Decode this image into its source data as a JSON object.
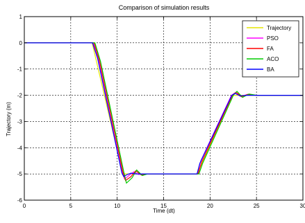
{
  "chart_data": {
    "type": "line",
    "title": "Comparison of simulation results",
    "xlabel": "Time (dt)",
    "ylabel": "Trajectory  (m)",
    "xlim": [
      0,
      30
    ],
    "ylim": [
      -6,
      1
    ],
    "x_ticks": [
      0,
      5,
      10,
      15,
      20,
      25,
      30
    ],
    "x_tick_labels": [
      "0",
      "5",
      "10",
      "15",
      "20",
      "25",
      "30"
    ],
    "y_ticks": [
      1,
      0,
      -1,
      -2,
      -3,
      -4,
      -5,
      -6
    ],
    "y_tick_labels": [
      "1",
      "0",
      "-1",
      "-2",
      "-3",
      "-4",
      "-5",
      "-6"
    ],
    "grid": true,
    "legend_position": "top-right",
    "series": [
      {
        "name": "Trajectory",
        "color": "#e6e600",
        "x": [
          0,
          7.3,
          10.6,
          18.6,
          22.5,
          30
        ],
        "y": [
          0,
          0,
          -5,
          -5,
          -2,
          -2
        ]
      },
      {
        "name": "PSO",
        "color": "#ff00ff",
        "x": [
          0,
          7.4,
          8.0,
          10.5,
          10.8,
          11.3,
          11.8,
          12.3,
          13.0,
          18.6,
          19.0,
          22.3,
          22.7,
          23.3,
          24.0,
          25.0,
          30
        ],
        "y": [
          0,
          0,
          -0.7,
          -4.9,
          -5.2,
          -5.05,
          -4.92,
          -5.02,
          -5.0,
          -5.0,
          -4.5,
          -2.0,
          -1.9,
          -2.05,
          -1.97,
          -2.0,
          -2.0
        ]
      },
      {
        "name": "FA",
        "color": "#ff0000",
        "x": [
          0,
          7.5,
          8.1,
          10.6,
          10.9,
          11.5,
          12.0,
          12.6,
          13.2,
          18.7,
          19.1,
          22.4,
          22.8,
          23.4,
          24.1,
          25.0,
          30
        ],
        "y": [
          0,
          0,
          -0.7,
          -4.9,
          -5.25,
          -5.1,
          -4.88,
          -5.04,
          -5.0,
          -5.0,
          -4.55,
          -2.0,
          -1.88,
          -2.06,
          -1.96,
          -2.0,
          -2.0
        ]
      },
      {
        "name": "ACO",
        "color": "#00cc00",
        "x": [
          0,
          7.6,
          8.2,
          10.7,
          11.0,
          11.6,
          12.1,
          12.7,
          13.3,
          18.8,
          19.2,
          22.5,
          22.9,
          23.5,
          24.2,
          25.0,
          30
        ],
        "y": [
          0,
          0,
          -0.7,
          -4.9,
          -5.35,
          -5.15,
          -4.85,
          -5.06,
          -5.0,
          -5.0,
          -4.6,
          -2.0,
          -1.85,
          -2.08,
          -1.95,
          -2.0,
          -2.0
        ]
      },
      {
        "name": "BA",
        "color": "#0000ff",
        "x": [
          0,
          7.35,
          7.9,
          10.5,
          10.7,
          11.1,
          11.5,
          12.0,
          18.6,
          18.9,
          22.35,
          22.7,
          23.2,
          24.0,
          30
        ],
        "y": [
          0,
          0,
          -0.6,
          -4.95,
          -5.1,
          -5.02,
          -4.97,
          -5.0,
          -5.0,
          -4.6,
          -2.0,
          -1.93,
          -2.02,
          -2.0,
          -2.0
        ]
      }
    ]
  }
}
